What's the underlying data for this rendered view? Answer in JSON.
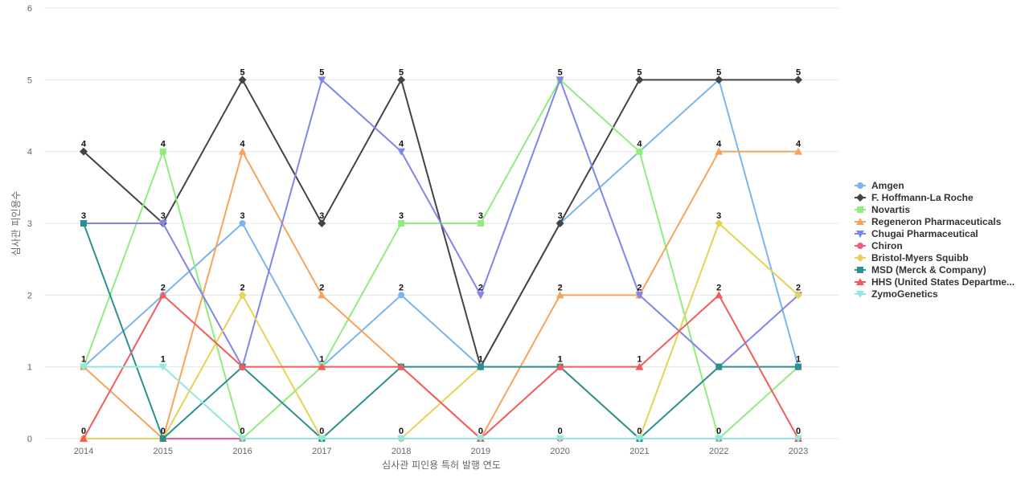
{
  "chart_data": {
    "type": "line",
    "xlabel": "심사관 피인용 특허 발행 연도",
    "ylabel": "심사관 피인용수",
    "categories": [
      "2014",
      "2015",
      "2016",
      "2017",
      "2018",
      "2019",
      "2020",
      "2021",
      "2022",
      "2023"
    ],
    "ylim": [
      0,
      6
    ],
    "yticks": [
      0,
      1,
      2,
      3,
      4,
      5,
      6
    ],
    "grid": true,
    "legend_position": "right",
    "series": [
      {
        "name": "Amgen",
        "color": "#7cb5ec",
        "marker": "circle",
        "values": [
          1,
          2,
          3,
          1,
          2,
          1,
          3,
          4,
          5,
          1
        ]
      },
      {
        "name": "F. Hoffmann-La Roche",
        "color": "#434348",
        "marker": "diamond",
        "values": [
          4,
          3,
          5,
          3,
          5,
          1,
          3,
          5,
          5,
          5
        ]
      },
      {
        "name": "Novartis",
        "color": "#90ed7d",
        "marker": "square",
        "values": [
          1,
          4,
          0,
          1,
          3,
          3,
          5,
          4,
          0,
          1
        ]
      },
      {
        "name": "Regeneron Pharmaceuticals",
        "color": "#f7a35c",
        "marker": "triangle",
        "values": [
          1,
          0,
          4,
          2,
          1,
          0,
          2,
          2,
          4,
          4
        ]
      },
      {
        "name": "Chugai Pharmaceutical",
        "color": "#8085e9",
        "marker": "triangle-down",
        "values": [
          3,
          3,
          1,
          5,
          4,
          2,
          5,
          2,
          1,
          2
        ]
      },
      {
        "name": "Chiron",
        "color": "#f15c80",
        "marker": "circle",
        "values": [
          0,
          0,
          0,
          0,
          0,
          0,
          0,
          0,
          0,
          0
        ]
      },
      {
        "name": "Bristol-Myers Squibb",
        "color": "#e4d354",
        "marker": "diamond",
        "values": [
          0,
          0,
          2,
          0,
          0,
          1,
          1,
          0,
          3,
          2
        ]
      },
      {
        "name": "MSD (Merck & Company)",
        "color": "#2b908f",
        "marker": "square",
        "values": [
          3,
          0,
          1,
          0,
          1,
          1,
          1,
          0,
          1,
          1
        ]
      },
      {
        "name": "HHS (United States Departme...",
        "color": "#f45b5b",
        "marker": "triangle",
        "values": [
          0,
          2,
          1,
          1,
          1,
          0,
          1,
          1,
          2,
          0
        ]
      },
      {
        "name": "ZymoGenetics",
        "color": "#91e8e1",
        "marker": "triangle-down",
        "values": [
          1,
          1,
          0,
          0,
          0,
          0,
          0,
          0,
          0,
          0
        ]
      }
    ],
    "top_labels": [
      "4",
      "4",
      "5",
      "5",
      "5",
      "3",
      "5",
      "5",
      "5",
      "5"
    ],
    "second_labels": [
      "3",
      "3",
      "4",
      "3",
      "4",
      "2",
      "3",
      "4",
      "4",
      "4"
    ],
    "third_labels": [
      "",
      "2",
      "3",
      "2",
      "3",
      "",
      "2",
      "2",
      "3",
      "2"
    ],
    "fourth_labels": [
      "1",
      "1",
      "2",
      "1",
      "2",
      "1",
      "1",
      "1",
      "2",
      "1"
    ],
    "zero_labels": [
      "0",
      "0",
      "0",
      "0",
      "0",
      "0",
      "0",
      "0",
      "0",
      "0"
    ]
  }
}
